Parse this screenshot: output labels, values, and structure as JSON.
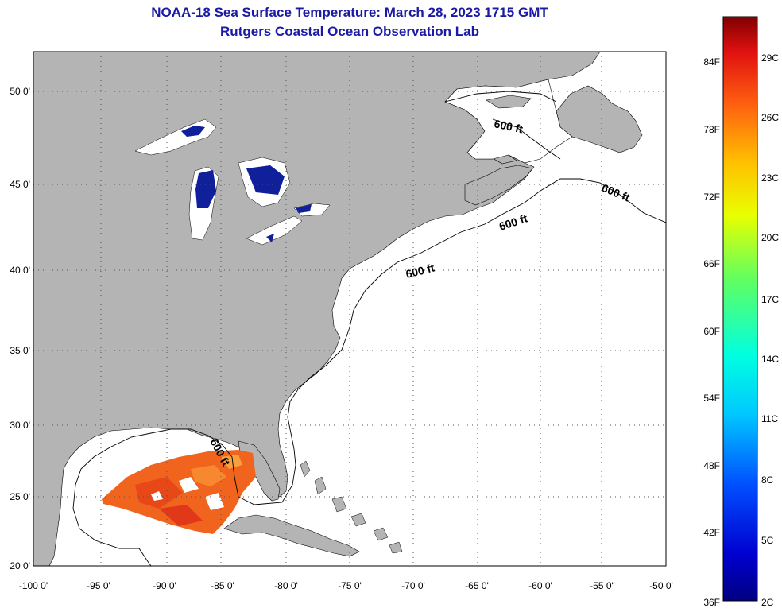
{
  "header": {
    "title": "NOAA-18 Sea Surface Temperature:  March 28, 2023 1715 GMT",
    "subtitle": "Rutgers Coastal Ocean Observation Lab"
  },
  "map": {
    "lat_labels": [
      "50 0'",
      "45 0'",
      "40 0'",
      "35 0'",
      "30 0'",
      "25 0'",
      "20 0'"
    ],
    "lon_labels": [
      "-100 0'",
      "-95 0'",
      "-90 0'",
      "-85 0'",
      "-80 0'",
      "-75 0'",
      "-70 0'",
      "-65 0'",
      "-60 0'",
      "-55 0'",
      "-50 0'"
    ],
    "contour_label": "600 ft",
    "colors": {
      "land": "#b4b4b4",
      "ocean": "#ffffff",
      "lakes": "#10209a",
      "sst_warm": "#f0641e",
      "grid": "#555555"
    }
  },
  "colorbar": {
    "f_labels": [
      "84F",
      "78F",
      "72F",
      "66F",
      "60F",
      "54F",
      "48F",
      "42F",
      "36F"
    ],
    "c_labels": [
      "29C",
      "26C",
      "23C",
      "20C",
      "17C",
      "14C",
      "11C",
      "8C",
      "5C",
      "2C"
    ]
  }
}
